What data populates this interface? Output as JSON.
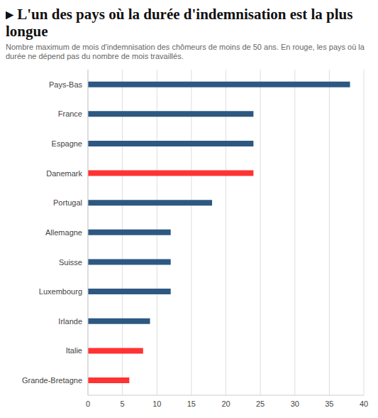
{
  "chart_data": {
    "type": "bar",
    "orientation": "horizontal",
    "title": "▸ L'un des pays où la durée d'indemnisation est la plus longue",
    "subtitle": "Nombre maximum de mois d'indemnisation des chômeurs de moins de 50 ans. En rouge, les pays où la durée ne dépend pas du nombre de mois travaillés.",
    "categories": [
      "Pays-Bas",
      "France",
      "Espagne",
      "Danemark",
      "Portugal",
      "Allemagne",
      "Suisse",
      "Luxembourg",
      "Irlande",
      "Italie",
      "Grande-Bretagne"
    ],
    "values": [
      38,
      24,
      24,
      24,
      18,
      12,
      12,
      12,
      9,
      8,
      6
    ],
    "colors": [
      "#2d5882",
      "#2d5882",
      "#2d5882",
      "#ff3333",
      "#2d5882",
      "#2d5882",
      "#2d5882",
      "#2d5882",
      "#2d5882",
      "#ff3333",
      "#ff3333"
    ],
    "xlim": [
      0,
      40
    ],
    "xticks": [
      0,
      5,
      10,
      15,
      20,
      25,
      30,
      35,
      40
    ],
    "grid": true
  }
}
